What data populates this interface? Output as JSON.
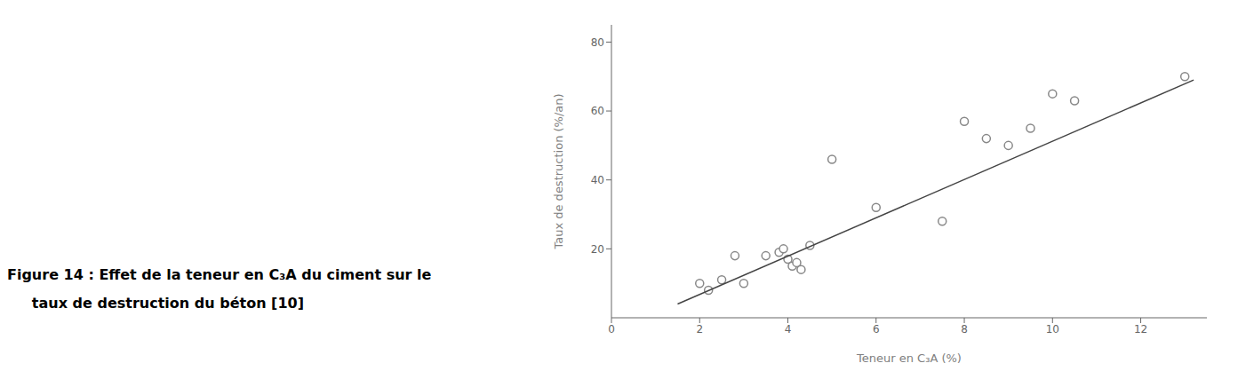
{
  "chart_data": {
    "type": "scatter",
    "xlabel": "Teneur en C₃A (%)",
    "ylabel": "Taux de destruction (%/an)",
    "xlim": [
      0,
      13.5
    ],
    "ylim": [
      0,
      85
    ],
    "xticks": [
      0,
      2,
      4,
      6,
      8,
      10,
      12
    ],
    "yticks": [
      20,
      40,
      60,
      80
    ],
    "grid": false,
    "series": [
      {
        "type": "scatter",
        "color": "#888888",
        "x": [
          2.0,
          2.2,
          2.5,
          2.8,
          3.0,
          3.5,
          3.8,
          3.9,
          4.0,
          4.1,
          4.2,
          4.3,
          4.5,
          5.0,
          6.0,
          7.5,
          8.0,
          8.5,
          9.0,
          9.5,
          10.0,
          10.5,
          13.0
        ],
        "values": [
          10,
          8,
          11,
          18,
          10,
          18,
          19,
          20,
          17,
          15,
          16,
          14,
          21,
          46,
          32,
          28,
          57,
          52,
          50,
          55,
          65,
          63,
          70
        ]
      },
      {
        "type": "line",
        "color": "#444444",
        "x": [
          1.5,
          13.2
        ],
        "values": [
          4,
          69
        ]
      }
    ],
    "annotations": [
      "Figure 14 : Effet de la teneur en C₃A du ciment sur le",
      "     taux de destruction du béton [10]"
    ]
  }
}
